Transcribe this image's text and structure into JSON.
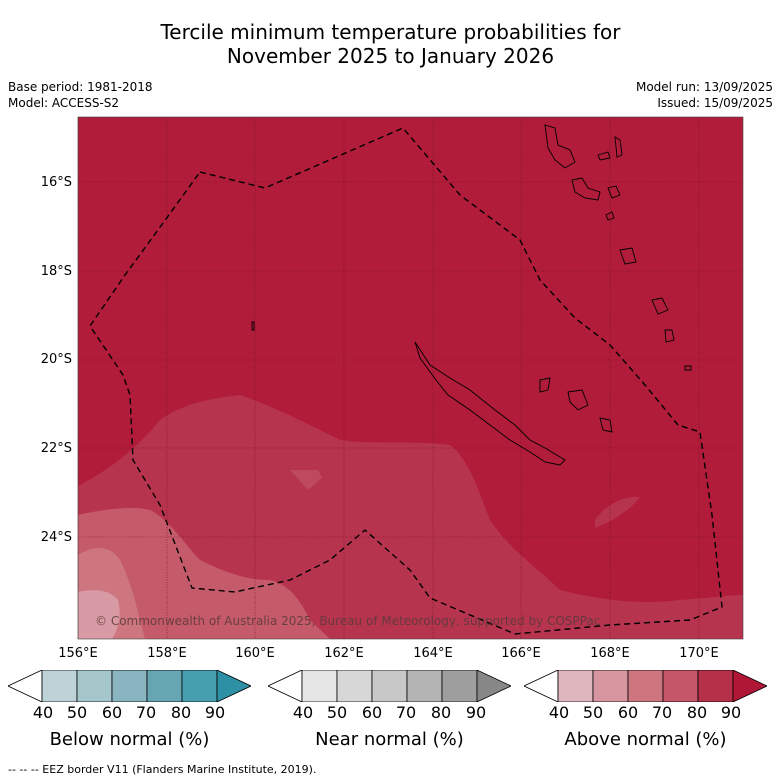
{
  "title_line1": "Tercile minimum temperature probabilities for",
  "title_line2": "November 2025 to January 2026",
  "base_period": "Base period: 1981-2018",
  "model": "Model: ACCESS-S2",
  "model_run": "Model run: 13/09/2025",
  "issued": "Issued: 15/09/2025",
  "copyright": "© Commonwealth of Australia 2025, Bureau of Meteorology, supported by COSPPac",
  "lat_labels": [
    "16°S",
    "18°S",
    "20°S",
    "22°S",
    "24°S"
  ],
  "lon_labels": [
    "156°E",
    "158°E",
    "160°E",
    "162°E",
    "164°E",
    "166°E",
    "168°E",
    "170°E"
  ],
  "colorbars": [
    {
      "title": "Below normal (%)",
      "ticks": [
        "40",
        "50",
        "60",
        "70",
        "80",
        "90"
      ],
      "colors": [
        "#ffffff",
        "#bed3d8",
        "#a5c6cb",
        "#88b5bf",
        "#66a6b3",
        "#459faf",
        "#2d90a4"
      ]
    },
    {
      "title": "Near normal (%)",
      "ticks": [
        "40",
        "50",
        "60",
        "70",
        "80",
        "90"
      ],
      "colors": [
        "#ffffff",
        "#e6e6e6",
        "#d7d7d7",
        "#c8c8c8",
        "#b4b4b4",
        "#9e9e9e",
        "#878787"
      ]
    },
    {
      "title": "Above normal (%)",
      "ticks": [
        "40",
        "50",
        "60",
        "70",
        "80",
        "90"
      ],
      "colors": [
        "#ffffff",
        "#deb6bd",
        "#d6959f",
        "#ce7680",
        "#c55568",
        "#b6304a",
        "#b01736"
      ]
    }
  ],
  "footnote": "--  --  -- EEZ border V11 (Flanders Marine Institute, 2019).",
  "map_colors": {
    "above_90": "#b01c3a",
    "above_80": "#b7344e",
    "above_70": "#c55a6a",
    "above_60": "#ce7680",
    "above_50": "#d89aa4"
  }
}
